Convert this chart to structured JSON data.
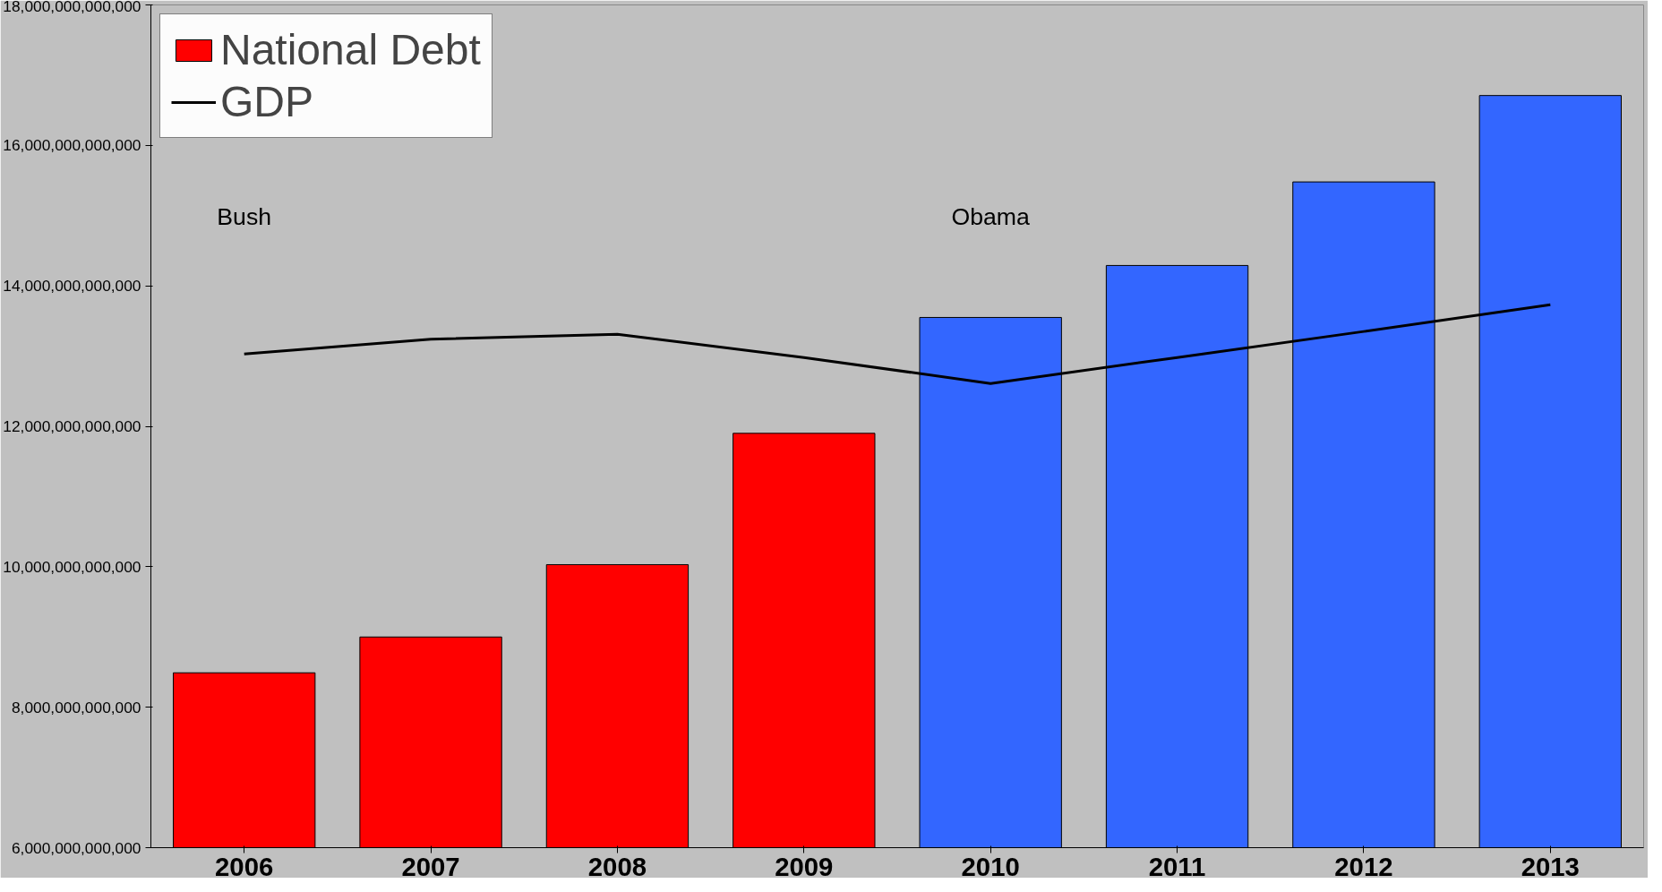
{
  "chart_data": {
    "type": "bar",
    "categories": [
      "2006",
      "2007",
      "2008",
      "2009",
      "2010",
      "2011",
      "2012",
      "2013"
    ],
    "series": [
      {
        "name": "National Debt",
        "color": "#ff0000",
        "colors": [
          "#ff0000",
          "#ff0000",
          "#ff0000",
          "#ff0000",
          "#3366ff",
          "#3366ff",
          "#3366ff",
          "#3366ff"
        ],
        "values": [
          8490000000000,
          9000000000000,
          10030000000000,
          11900000000000,
          13550000000000,
          14290000000000,
          15480000000000,
          16710000000000
        ]
      },
      {
        "name": "GDP",
        "type": "line",
        "color": "#000000",
        "values": [
          13030000000000,
          13240000000000,
          13310000000000,
          12980000000000,
          12610000000000,
          12980000000000,
          13350000000000,
          13730000000000
        ]
      }
    ],
    "ylim": [
      6000000000000,
      18000000000000
    ],
    "yticks": [
      {
        "value": 6000000000000,
        "label": "6,000,000,000,000"
      },
      {
        "value": 8000000000000,
        "label": "8,000,000,000,000"
      },
      {
        "value": 10000000000000,
        "label": "10,000,000,000,000"
      },
      {
        "value": 12000000000000,
        "label": "12,000,000,000,000"
      },
      {
        "value": 14000000000000,
        "label": "14,000,000,000,000"
      },
      {
        "value": 16000000000000,
        "label": "16,000,000,000,000"
      },
      {
        "value": 18000000000000,
        "label": "18,000,000,000,000"
      }
    ],
    "annotations": [
      "Bush",
      "Obama"
    ],
    "legend": "top left",
    "grid": false,
    "line_style": "solid",
    "marker": "none"
  }
}
